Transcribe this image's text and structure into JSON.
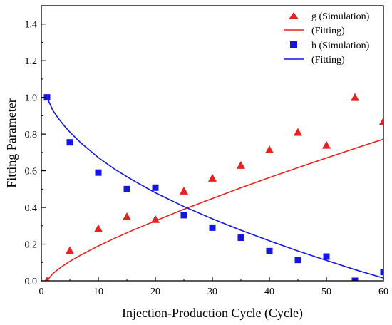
{
  "chart_data": {
    "type": "scatter",
    "xlabel": "Injection-Production Cycle (Cycle)",
    "ylabel": "Fitting Parameter",
    "xlim": [
      0,
      60
    ],
    "ylim": [
      0,
      1.5
    ],
    "x_ticks": [
      0,
      10,
      20,
      30,
      40,
      50,
      60
    ],
    "y_ticks": [
      0.0,
      0.2,
      0.4,
      0.6,
      0.8,
      1.0,
      1.2,
      1.4
    ],
    "grid": false,
    "legend_position": "top-right",
    "series": [
      {
        "name": "g (Simulation)",
        "kind": "scatter",
        "marker": "triangle",
        "color": "#e8221f",
        "x": [
          1,
          5,
          10,
          15,
          20,
          25,
          30,
          35,
          40,
          45,
          50,
          55,
          60
        ],
        "y": [
          0.0,
          0.165,
          0.285,
          0.35,
          0.335,
          0.49,
          0.56,
          0.63,
          0.715,
          0.81,
          0.74,
          1.0,
          0.87
        ]
      },
      {
        "name": "(Fitting)",
        "kind": "line",
        "color": "#e8221f",
        "x": [
          1,
          2,
          3,
          4,
          5,
          7,
          10,
          13,
          16,
          20,
          25,
          30,
          35,
          40,
          45,
          50,
          55,
          60
        ],
        "y": [
          0.0,
          0.039,
          0.064,
          0.086,
          0.106,
          0.142,
          0.19,
          0.234,
          0.275,
          0.327,
          0.39,
          0.449,
          0.507,
          0.563,
          0.617,
          0.67,
          0.722,
          0.772
        ]
      },
      {
        "name": "h (Simulation)",
        "kind": "scatter",
        "marker": "square",
        "color": "#1515e0",
        "x": [
          1,
          5,
          10,
          15,
          20,
          25,
          30,
          35,
          40,
          45,
          50,
          55,
          60
        ],
        "y": [
          1.0,
          0.755,
          0.59,
          0.5,
          0.508,
          0.358,
          0.29,
          0.235,
          0.162,
          0.114,
          0.132,
          0.0,
          0.048
        ]
      },
      {
        "name": "(Fitting)",
        "kind": "line",
        "color": "#1515e0",
        "x": [
          1,
          2,
          3,
          4,
          5,
          7,
          10,
          13,
          16,
          20,
          25,
          30,
          35,
          40,
          45,
          50,
          55,
          60
        ],
        "y": [
          1.0,
          0.93,
          0.885,
          0.846,
          0.811,
          0.75,
          0.672,
          0.606,
          0.549,
          0.48,
          0.405,
          0.338,
          0.276,
          0.218,
          0.163,
          0.111,
          0.061,
          0.015
        ]
      }
    ]
  }
}
